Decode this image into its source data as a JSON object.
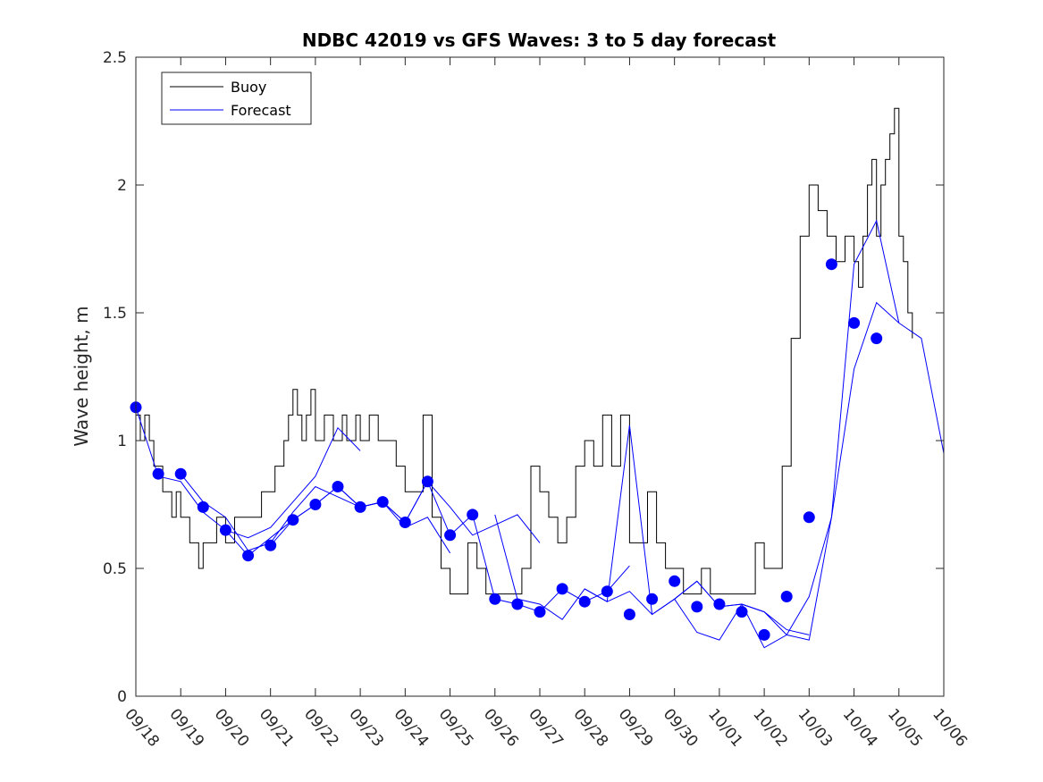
{
  "chart_data": {
    "type": "line",
    "title": "NDBC 42019 vs GFS Waves: 3 to 5 day forecast",
    "xlabel": "",
    "ylabel": "Wave height, m",
    "xlim": [
      0,
      18
    ],
    "ylim": [
      0,
      2.5
    ],
    "x_tick_values": [
      0,
      1,
      2,
      3,
      4,
      5,
      6,
      7,
      8,
      9,
      10,
      11,
      12,
      13,
      14,
      15,
      16,
      17,
      18
    ],
    "x_tick_labels": [
      "09/18",
      "09/19",
      "09/20",
      "09/21",
      "09/22",
      "09/23",
      "09/24",
      "09/25",
      "09/26",
      "09/27",
      "09/28",
      "09/29",
      "09/30",
      "10/01",
      "10/02",
      "10/03",
      "10/04",
      "10/05",
      "10/06"
    ],
    "y_ticks": [
      0,
      0.5,
      1,
      1.5,
      2,
      2.5
    ],
    "y_tick_labels": [
      "0",
      "0.5",
      "1",
      "1.5",
      "2",
      "2.5"
    ],
    "legend": {
      "position": "top-left",
      "entries": [
        "Buoy",
        "Forecast"
      ]
    },
    "colors": {
      "buoy": "#000000",
      "forecast": "#0000ff"
    },
    "series": [
      {
        "name": "Buoy",
        "color": "#000000",
        "x": [
          0,
          0.1,
          0.2,
          0.3,
          0.4,
          0.5,
          0.6,
          0.7,
          0.8,
          0.9,
          1.0,
          1.1,
          1.2,
          1.3,
          1.4,
          1.5,
          1.6,
          1.7,
          1.8,
          1.9,
          2.0,
          2.1,
          2.2,
          2.3,
          2.4,
          2.5,
          2.6,
          2.7,
          2.8,
          2.9,
          3.0,
          3.1,
          3.2,
          3.3,
          3.4,
          3.5,
          3.6,
          3.7,
          3.8,
          3.9,
          4.0,
          4.1,
          4.2,
          4.3,
          4.4,
          4.5,
          4.6,
          4.7,
          4.8,
          4.9,
          5.0,
          5.1,
          5.2,
          5.3,
          5.4,
          5.5,
          5.6,
          5.7,
          5.8,
          5.9,
          6.0,
          6.2,
          6.4,
          6.6,
          6.8,
          7.0,
          7.2,
          7.4,
          7.6,
          7.8,
          8.0,
          8.2,
          8.4,
          8.6,
          8.8,
          9.0,
          9.2,
          9.4,
          9.6,
          9.8,
          10.0,
          10.2,
          10.4,
          10.6,
          10.8,
          11.0,
          11.2,
          11.4,
          11.6,
          11.8,
          12.0,
          12.2,
          12.4,
          12.6,
          12.8,
          13.0,
          13.2,
          13.4,
          13.6,
          13.8,
          14.0,
          14.2,
          14.4,
          14.6,
          14.8,
          15.0,
          15.2,
          15.4,
          15.6,
          15.8,
          16.0,
          16.1,
          16.2,
          16.3,
          16.4,
          16.5,
          16.6,
          16.7,
          16.8,
          16.9,
          17.0,
          17.1,
          17.2,
          17.3
        ],
        "values": [
          1.1,
          1.0,
          1.1,
          1.0,
          0.9,
          0.9,
          0.8,
          0.8,
          0.7,
          0.8,
          0.7,
          0.7,
          0.6,
          0.6,
          0.5,
          0.6,
          0.6,
          0.6,
          0.7,
          0.7,
          0.6,
          0.6,
          0.7,
          0.7,
          0.7,
          0.7,
          0.7,
          0.7,
          0.8,
          0.8,
          0.8,
          0.9,
          0.9,
          1.0,
          1.1,
          1.2,
          1.1,
          1.0,
          1.1,
          1.2,
          1.0,
          1.0,
          1.1,
          1.1,
          1.0,
          1.0,
          1.1,
          1.0,
          1.0,
          1.1,
          1.0,
          1.0,
          1.1,
          1.1,
          1.0,
          1.0,
          1.0,
          1.0,
          0.9,
          0.9,
          0.8,
          0.8,
          1.1,
          0.7,
          0.5,
          0.4,
          0.4,
          0.6,
          0.5,
          0.4,
          0.4,
          0.4,
          0.4,
          0.5,
          0.9,
          0.8,
          0.7,
          0.6,
          0.7,
          0.9,
          1.0,
          0.9,
          1.1,
          0.9,
          1.1,
          0.6,
          0.6,
          0.8,
          0.6,
          0.5,
          0.5,
          0.4,
          0.4,
          0.5,
          0.4,
          0.4,
          0.4,
          0.4,
          0.4,
          0.6,
          0.5,
          0.5,
          0.9,
          1.4,
          1.8,
          2.0,
          1.9,
          1.8,
          1.7,
          1.8,
          1.7,
          1.6,
          1.8,
          2.0,
          2.1,
          1.8,
          2.0,
          2.1,
          2.2,
          2.3,
          1.8,
          1.7,
          1.5,
          1.4
        ]
      },
      {
        "name": "Forecast",
        "color": "#0000ff",
        "runs": [
          {
            "x": [
              0,
              0.5,
              1,
              1.5,
              2,
              2.5,
              3,
              3.5,
              4,
              4.5,
              5
            ],
            "values": [
              1.13,
              0.86,
              0.84,
              0.72,
              0.65,
              0.62,
              0.66,
              0.76,
              0.86,
              1.05,
              0.96
            ]
          },
          {
            "x": [
              1,
              1.5,
              2,
              2.5,
              3,
              3.5,
              4,
              4.5,
              5,
              5.5,
              6,
              6.5,
              7
            ],
            "values": [
              0.87,
              0.76,
              0.7,
              0.57,
              0.6,
              0.72,
              0.82,
              0.78,
              0.74,
              0.76,
              0.66,
              0.7,
              0.56
            ]
          },
          {
            "x": [
              2,
              2.5,
              3,
              3.5,
              4,
              4.5,
              5,
              5.5,
              6,
              6.5,
              7,
              7.5,
              8,
              8.5,
              9
            ],
            "values": [
              0.65,
              0.55,
              0.62,
              0.69,
              0.75,
              0.82,
              0.74,
              0.76,
              0.68,
              0.84,
              0.74,
              0.63,
              0.67,
              0.71,
              0.6
            ]
          },
          {
            "x": [
              3,
              3.5,
              4,
              4.5,
              5,
              5.5,
              6,
              6.5,
              7,
              7.5,
              8,
              8.5,
              9,
              9.5,
              10,
              10.5,
              11
            ],
            "values": [
              0.59,
              0.69,
              0.75,
              0.82,
              0.74,
              0.76,
              0.68,
              0.84,
              0.63,
              0.71,
              0.38,
              0.36,
              0.33,
              0.42,
              0.37,
              0.41,
              0.51
            ]
          },
          {
            "x": [
              8,
              8.5,
              9,
              9.5,
              10,
              10.5,
              11,
              11.5,
              12,
              12.5,
              13,
              13.5,
              14
            ],
            "values": [
              0.71,
              0.38,
              0.36,
              0.3,
              0.42,
              0.37,
              1.06,
              0.32,
              0.38,
              0.45,
              0.35,
              0.36,
              0.33
            ]
          },
          {
            "x": [
              10,
              10.5,
              11,
              11.5,
              12,
              12.5,
              13,
              13.5,
              14,
              14.5,
              15
            ],
            "values": [
              0.42,
              0.37,
              0.41,
              0.32,
              0.38,
              0.25,
              0.22,
              0.36,
              0.33,
              0.26,
              0.24
            ]
          },
          {
            "x": [
              12,
              12.5,
              13,
              13.5,
              14,
              14.5,
              15,
              15.5,
              16,
              16.5,
              17
            ],
            "values": [
              0.38,
              0.45,
              0.35,
              0.36,
              0.19,
              0.24,
              0.39,
              0.7,
              1.69,
              1.86,
              1.46
            ]
          },
          {
            "x": [
              14,
              14.5,
              15,
              15.5,
              16,
              16.5,
              17,
              17.5,
              18
            ],
            "values": [
              0.33,
              0.24,
              0.22,
              0.7,
              1.28,
              1.54,
              1.46,
              1.4,
              0.95
            ]
          }
        ],
        "markers": {
          "x": [
            0,
            0.5,
            1,
            1.5,
            2,
            2.5,
            3,
            3.5,
            4,
            4.5,
            5,
            5.5,
            6,
            6.5,
            7,
            7.5,
            8,
            8.5,
            9,
            9.5,
            10,
            10.5,
            11,
            11.5,
            12,
            12.5,
            13,
            13.5,
            14,
            14.5,
            15,
            15.5,
            16,
            16.5,
            17
          ],
          "values": [
            1.13,
            0.87,
            0.87,
            0.74,
            0.65,
            0.55,
            0.59,
            0.69,
            0.75,
            0.82,
            0.74,
            0.76,
            0.68,
            0.84,
            0.63,
            0.71,
            0.38,
            0.36,
            0.33,
            0.42,
            0.37,
            0.41,
            0.32,
            0.38,
            0.45,
            0.35,
            0.36,
            0.33,
            0.24,
            0.39,
            0.7,
            1.69,
            1.46,
            1.4,
            null
          ]
        }
      }
    ]
  }
}
